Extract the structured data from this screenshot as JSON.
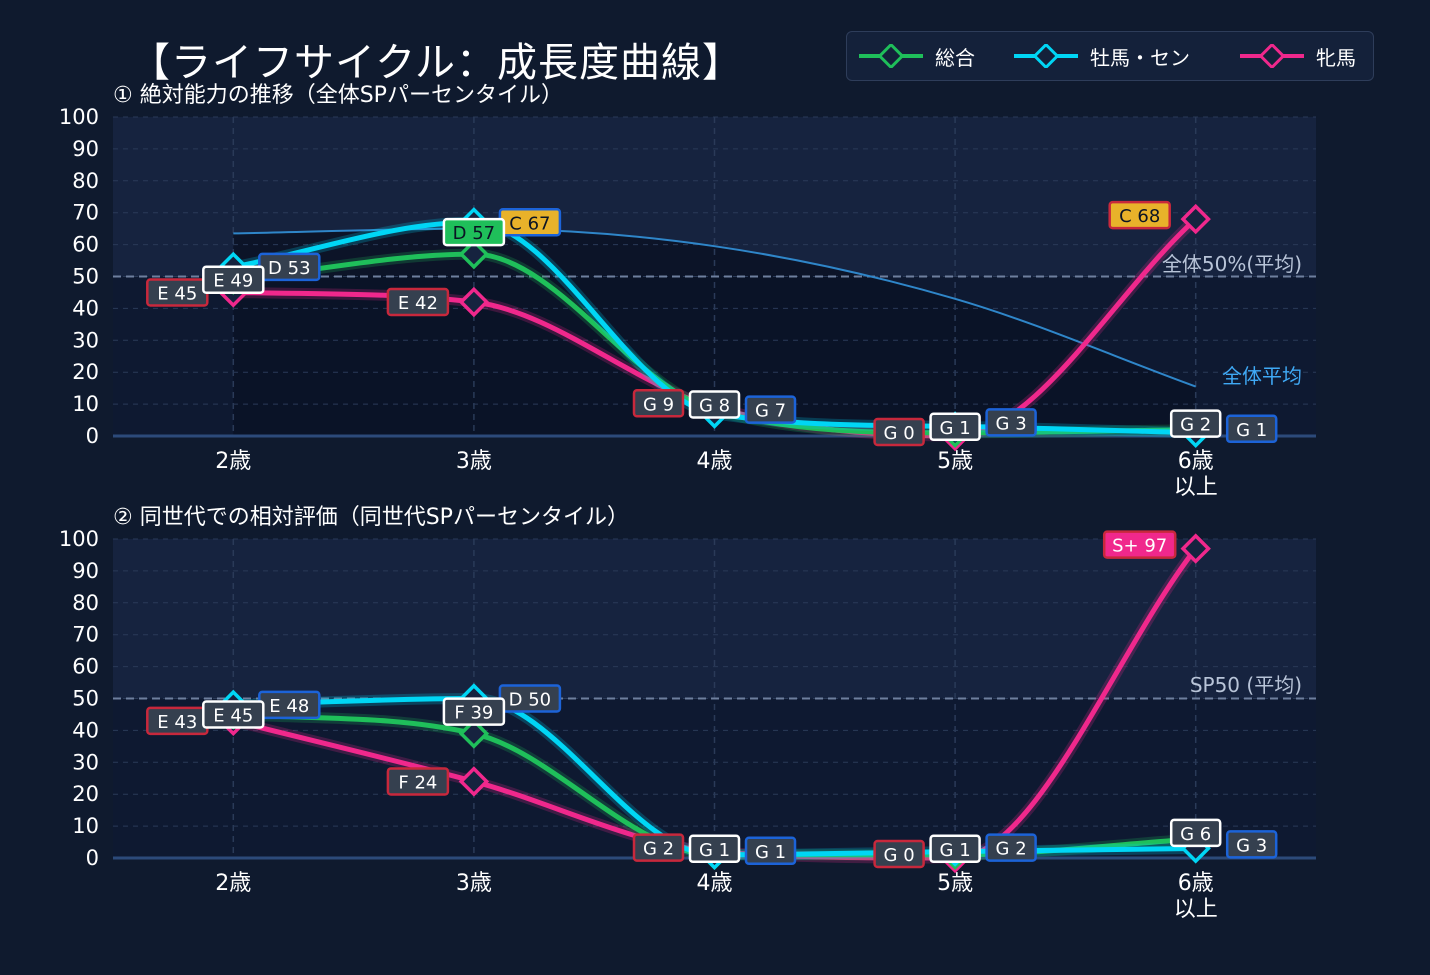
{
  "title": "【ライフサイクル：成長度曲線】",
  "legend": [
    {
      "name": "総合",
      "color": "#1fbf5a"
    },
    {
      "name": "牡馬・セン",
      "color": "#00d6f5"
    },
    {
      "name": "牝馬",
      "color": "#f0288c"
    }
  ],
  "chart_data": [
    {
      "type": "line",
      "subtitle": "① 絶対能力の推移（全体SPパーセンタイル）",
      "categories": [
        "2歳",
        "3歳",
        "4歳",
        "5歳",
        "6歳\n以上"
      ],
      "ylim": [
        0,
        100
      ],
      "yticks": [
        0,
        10,
        20,
        30,
        40,
        50,
        60,
        70,
        80,
        90,
        100
      ],
      "grid": true,
      "reference_line": {
        "value": 50,
        "label": "全体50%(平均)"
      },
      "average_curve": {
        "label": "全体平均",
        "values": [
          63.5,
          65,
          59.5,
          43,
          15.5
        ]
      },
      "series": [
        {
          "name": "総合",
          "values": [
            49,
            57,
            8,
            1,
            2
          ],
          "labels": [
            "E 49",
            "D 57",
            "G 8",
            "G 1",
            "G 2"
          ]
        },
        {
          "name": "牡馬・セン",
          "values": [
            53,
            67,
            7,
            3,
            1
          ],
          "labels": [
            "D 53",
            "C 67",
            "G 7",
            "G 3",
            "G 1"
          ]
        },
        {
          "name": "牝馬",
          "values": [
            45,
            42,
            9,
            0,
            68
          ],
          "labels": [
            "E 45",
            "E 42",
            "G 9",
            "G 0",
            "C 68"
          ]
        }
      ]
    },
    {
      "type": "line",
      "subtitle": "② 同世代での相対評価（同世代SPパーセンタイル）",
      "categories": [
        "2歳",
        "3歳",
        "4歳",
        "5歳",
        "6歳\n以上"
      ],
      "ylim": [
        0,
        100
      ],
      "yticks": [
        0,
        10,
        20,
        30,
        40,
        50,
        60,
        70,
        80,
        90,
        100
      ],
      "grid": true,
      "reference_line": {
        "value": 50,
        "label": "SP50 (平均)"
      },
      "series": [
        {
          "name": "総合",
          "values": [
            45,
            39,
            1,
            1,
            6
          ],
          "labels": [
            "E 45",
            "F 39",
            "G 1",
            "G 1",
            "G 6"
          ]
        },
        {
          "name": "牡馬・セン",
          "values": [
            48,
            50,
            1,
            2,
            3
          ],
          "labels": [
            "E 48",
            "D 50",
            "G 1",
            "G 2",
            "G 3"
          ]
        },
        {
          "name": "牝馬",
          "values": [
            43,
            24,
            2,
            0,
            97
          ],
          "labels": [
            "E 43",
            "F 24",
            "G 2",
            "G 0",
            "S+ 97"
          ]
        }
      ]
    }
  ]
}
